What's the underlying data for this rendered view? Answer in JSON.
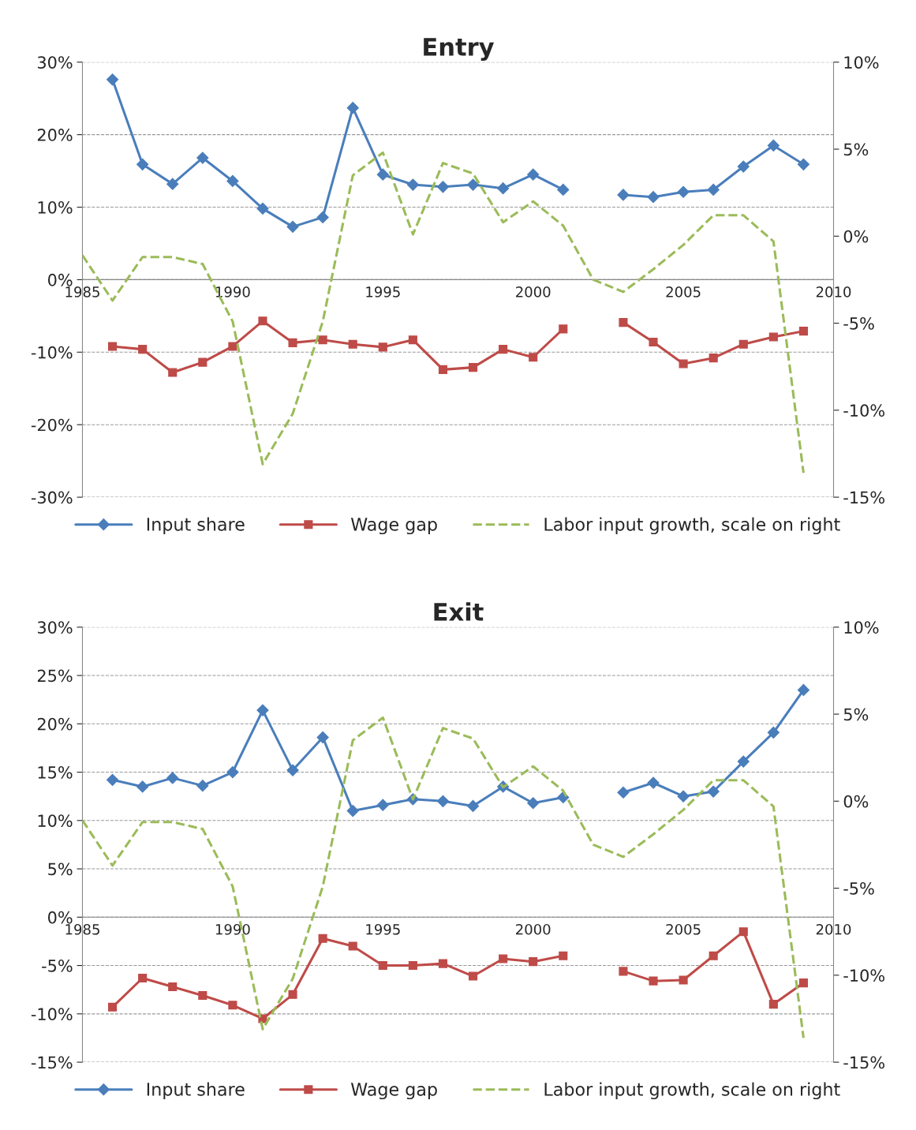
{
  "chart_data": [
    {
      "type": "line",
      "title": "Entry",
      "x": [
        1985,
        1986,
        1987,
        1988,
        1989,
        1990,
        1991,
        1992,
        1993,
        1994,
        1995,
        1996,
        1997,
        1998,
        1999,
        2000,
        2001,
        2002,
        2003,
        2004,
        2005,
        2006,
        2007,
        2008,
        2009
      ],
      "series": [
        {
          "name": "Input share",
          "color": "#4a7ebb",
          "marker": "diamond",
          "line_style": "solid",
          "values": [
            null,
            27.6,
            15.9,
            13.2,
            16.8,
            13.6,
            9.8,
            7.3,
            8.6,
            23.7,
            14.5,
            13.1,
            12.8,
            13.1,
            12.6,
            14.5,
            12.4,
            null,
            11.7,
            11.4,
            12.1,
            12.4,
            15.6,
            18.5,
            15.9
          ]
        },
        {
          "name": "Wage gap",
          "color": "#be4b48",
          "marker": "square",
          "line_style": "solid",
          "values": [
            null,
            -9.2,
            -9.6,
            -12.8,
            -11.4,
            -9.2,
            -5.7,
            -8.7,
            -8.3,
            -8.9,
            -9.3,
            -8.3,
            -12.4,
            -12.1,
            -9.6,
            -10.7,
            -6.8,
            null,
            -5.9,
            -8.6,
            -11.6,
            -10.8,
            -8.9,
            -7.9,
            -7.1
          ]
        },
        {
          "name": "Labor input growth, scale on right",
          "color": "#9bbb59",
          "marker": "none",
          "line_style": "dashed",
          "axis": "y2",
          "values": [
            -1.1,
            -3.7,
            -1.2,
            -1.2,
            -1.6,
            -4.9,
            -13.1,
            -10.2,
            -4.9,
            3.5,
            4.8,
            0.1,
            4.2,
            3.6,
            0.8,
            2.0,
            0.6,
            -2.5,
            -3.2,
            -1.9,
            -0.5,
            1.2,
            1.2,
            -0.3,
            -13.6
          ]
        }
      ],
      "xlim": [
        1985,
        2010
      ],
      "xticks": [
        1985,
        1990,
        1995,
        2000,
        2005,
        2010
      ],
      "ylim": [
        -30,
        30
      ],
      "yticks": [
        {
          "value": -30,
          "label": "-30%"
        },
        {
          "value": -20,
          "label": "-20%"
        },
        {
          "value": -10,
          "label": "-10%"
        },
        {
          "value": 0,
          "label": "0%"
        },
        {
          "value": 10,
          "label": "10%"
        },
        {
          "value": 20,
          "label": "20%"
        },
        {
          "value": 30,
          "label": "30%"
        }
      ],
      "y2lim": [
        -15,
        10
      ],
      "y2ticks": [
        {
          "value": -15,
          "label": "-15%"
        },
        {
          "value": -10,
          "label": "-10%"
        },
        {
          "value": -5,
          "label": "-5%"
        },
        {
          "value": 0,
          "label": "0%"
        },
        {
          "value": 5,
          "label": "5%"
        },
        {
          "value": 10,
          "label": "10%"
        }
      ],
      "grid": "y",
      "legend": "bottom"
    },
    {
      "type": "line",
      "title": "Exit",
      "x": [
        1985,
        1986,
        1987,
        1988,
        1989,
        1990,
        1991,
        1992,
        1993,
        1994,
        1995,
        1996,
        1997,
        1998,
        1999,
        2000,
        2001,
        2002,
        2003,
        2004,
        2005,
        2006,
        2007,
        2008,
        2009
      ],
      "series": [
        {
          "name": "Input share",
          "color": "#4a7ebb",
          "marker": "diamond",
          "line_style": "solid",
          "values": [
            null,
            14.2,
            13.5,
            14.4,
            13.6,
            15.0,
            21.4,
            15.2,
            18.6,
            11.0,
            11.6,
            12.2,
            12.0,
            11.5,
            13.5,
            11.8,
            12.4,
            null,
            12.9,
            13.9,
            12.5,
            13.0,
            16.1,
            19.1,
            23.5
          ]
        },
        {
          "name": "Wage gap",
          "color": "#be4b48",
          "marker": "square",
          "line_style": "solid",
          "values": [
            null,
            -9.3,
            -6.3,
            -7.2,
            -8.1,
            -9.1,
            -10.5,
            -8.0,
            -2.2,
            -3.0,
            -5.0,
            -5.0,
            -4.8,
            -6.1,
            -4.3,
            -4.6,
            -4.0,
            null,
            -5.6,
            -6.6,
            -6.5,
            -4.0,
            -1.5,
            -9.0,
            -6.8
          ]
        },
        {
          "name": "Labor input growth, scale on right",
          "color": "#9bbb59",
          "marker": "none",
          "line_style": "dashed",
          "axis": "y2",
          "values": [
            -1.1,
            -3.7,
            -1.2,
            -1.2,
            -1.6,
            -4.9,
            -13.1,
            -10.2,
            -4.9,
            3.5,
            4.8,
            0.1,
            4.2,
            3.6,
            0.8,
            2.0,
            0.6,
            -2.5,
            -3.2,
            -1.9,
            -0.5,
            1.2,
            1.2,
            -0.3,
            -13.6
          ]
        }
      ],
      "xlim": [
        1985,
        2010
      ],
      "xticks": [
        1985,
        1990,
        1995,
        2000,
        2005,
        2010
      ],
      "ylim": [
        -15,
        30
      ],
      "yticks": [
        {
          "value": -15,
          "label": "-15%"
        },
        {
          "value": -10,
          "label": "-10%"
        },
        {
          "value": -5,
          "label": "-5%"
        },
        {
          "value": 0,
          "label": "0%"
        },
        {
          "value": 5,
          "label": "5%"
        },
        {
          "value": 10,
          "label": "10%"
        },
        {
          "value": 15,
          "label": "15%"
        },
        {
          "value": 20,
          "label": "20%"
        },
        {
          "value": 25,
          "label": "25%"
        },
        {
          "value": 30,
          "label": "30%"
        }
      ],
      "y2lim": [
        -15,
        10
      ],
      "y2ticks": [
        {
          "value": -15,
          "label": "-15%"
        },
        {
          "value": -10,
          "label": "-10%"
        },
        {
          "value": -5,
          "label": "-5%"
        },
        {
          "value": 0,
          "label": "0%"
        },
        {
          "value": 5,
          "label": "5%"
        },
        {
          "value": 10,
          "label": "10%"
        }
      ],
      "grid": "y",
      "legend": "bottom"
    }
  ]
}
